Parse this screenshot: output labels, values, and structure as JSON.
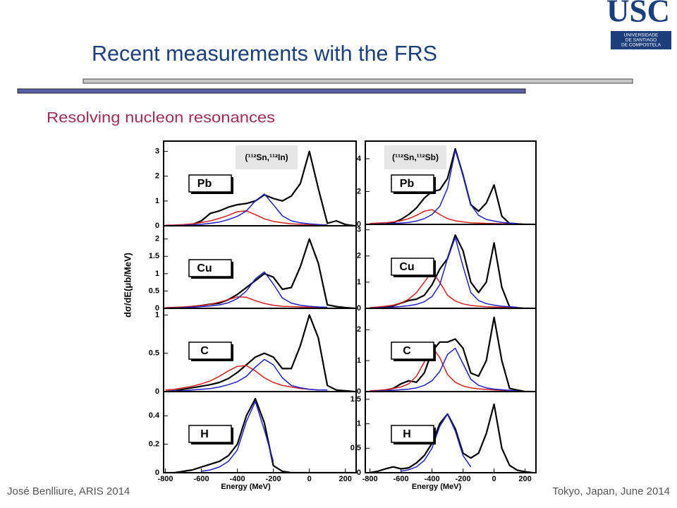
{
  "title": "Recent measurements with the FRS",
  "subtitle": "Resolving nucleon resonances",
  "logo": {
    "mark": "USC",
    "lines": [
      "UNIVERSIDADE",
      "DE SANTIAGO",
      "DE COMPOSTELA"
    ]
  },
  "footer_left": "José Benlliure, ARIS 2014",
  "footer_right": "Tokyo, Japan, June 2014",
  "ylabel": "dσ/dE(μb/MeV)",
  "chart_data": [
    {
      "type": "line",
      "label": "Pb",
      "reaction": "(¹¹²Sn,¹¹²In)",
      "x": [
        -800,
        -750,
        -700,
        -650,
        -600,
        -550,
        -500,
        -450,
        -400,
        -350,
        -300,
        -250,
        -200,
        -150,
        -100,
        -50,
        0,
        50,
        100,
        150,
        200,
        250
      ],
      "xlim": [
        -810,
        260
      ],
      "ylim": [
        0,
        3.3
      ],
      "yticks": [
        0,
        1,
        2,
        3
      ],
      "series": [
        {
          "color": "#000000",
          "values": [
            0,
            0,
            0.02,
            0.05,
            0.2,
            0.5,
            0.6,
            0.75,
            0.85,
            0.9,
            1.0,
            1.25,
            1.1,
            1.0,
            1.2,
            1.7,
            3.0,
            1.5,
            0.1,
            0.2,
            0.05,
            0
          ]
        },
        {
          "color": "#d02020",
          "values": [
            0.02,
            0.03,
            0.05,
            0.08,
            0.13,
            0.2,
            0.3,
            0.42,
            0.57,
            0.6,
            0.45,
            0.28,
            0.18,
            0.12,
            0.08,
            0.06,
            0.04,
            0.03,
            0.02,
            null,
            null,
            null
          ]
        },
        {
          "color": "#2020c0",
          "values": [
            0,
            0.01,
            0.02,
            0.04,
            0.06,
            0.1,
            0.15,
            0.25,
            0.38,
            0.6,
            1.0,
            1.28,
            0.85,
            0.4,
            0.2,
            0.12,
            0.08,
            0.05,
            0.03,
            null,
            null,
            null
          ]
        }
      ]
    },
    {
      "type": "line",
      "label": "Cu",
      "x": [
        -800,
        -750,
        -700,
        -650,
        -600,
        -550,
        -500,
        -450,
        -400,
        -350,
        -300,
        -250,
        -200,
        -150,
        -100,
        -50,
        0,
        50,
        100,
        150,
        200,
        250
      ],
      "xlim": [
        -810,
        260
      ],
      "ylim": [
        0,
        2.3
      ],
      "yticks": [
        0,
        0.5,
        1,
        1.5,
        2
      ],
      "series": [
        {
          "color": "#000000",
          "values": [
            0,
            0,
            0.02,
            0.05,
            0.08,
            0.12,
            0.15,
            0.25,
            0.4,
            0.6,
            0.8,
            1.0,
            0.9,
            0.55,
            0.6,
            1.2,
            2.0,
            1.3,
            0.1,
            0.05,
            0.02,
            0
          ]
        },
        {
          "color": "#d02020",
          "values": [
            0.02,
            0.03,
            0.04,
            0.06,
            0.08,
            0.12,
            0.18,
            0.25,
            0.33,
            0.32,
            0.22,
            0.14,
            0.09,
            0.06,
            0.05,
            0.04,
            0.03,
            0.02,
            0.02,
            null,
            null,
            null
          ]
        },
        {
          "color": "#2020c0",
          "values": [
            0.01,
            0.01,
            0.02,
            0.03,
            0.05,
            0.07,
            0.1,
            0.16,
            0.28,
            0.5,
            0.85,
            1.05,
            0.7,
            0.3,
            0.15,
            0.09,
            0.06,
            0.04,
            0.03,
            null,
            null,
            null
          ]
        }
      ]
    },
    {
      "type": "line",
      "label": "C",
      "x": [
        -800,
        -750,
        -700,
        -650,
        -600,
        -550,
        -500,
        -450,
        -400,
        -350,
        -300,
        -250,
        -200,
        -150,
        -100,
        -50,
        0,
        50,
        100,
        150,
        200,
        250
      ],
      "xlim": [
        -810,
        260
      ],
      "ylim": [
        0,
        1.05
      ],
      "yticks": [
        0,
        0.5,
        1
      ],
      "series": [
        {
          "color": "#000000",
          "values": [
            0,
            0.01,
            0.03,
            0.05,
            0.07,
            0.09,
            0.12,
            0.17,
            0.25,
            0.35,
            0.45,
            0.5,
            0.45,
            0.3,
            0.3,
            0.6,
            1.0,
            0.7,
            0.08,
            0.02,
            0.01,
            0
          ]
        },
        {
          "color": "#d02020",
          "values": [
            0.02,
            0.03,
            0.05,
            0.07,
            0.1,
            0.14,
            0.2,
            0.27,
            0.33,
            0.34,
            0.27,
            0.18,
            0.12,
            0.08,
            0.06,
            0.04,
            0.03,
            0.02,
            0.02,
            null,
            null,
            null
          ]
        },
        {
          "color": "#2020c0",
          "values": [
            0,
            0.01,
            0.01,
            0.02,
            0.03,
            0.04,
            0.06,
            0.09,
            0.13,
            0.2,
            0.32,
            0.42,
            0.35,
            0.18,
            0.08,
            0.05,
            0.03,
            0.02,
            0.02,
            null,
            null,
            null
          ]
        }
      ]
    },
    {
      "type": "line",
      "label": "H",
      "x": [
        -800,
        -750,
        -700,
        -650,
        -600,
        -550,
        -500,
        -450,
        -400,
        -350,
        -300,
        -250,
        -200,
        -150,
        -100,
        -50,
        0,
        50,
        100,
        150,
        200,
        250
      ],
      "xlim": [
        -810,
        260
      ],
      "ylim": [
        0,
        0.55
      ],
      "yticks": [
        0,
        0.2,
        0.4
      ],
      "xticks": [
        -800,
        -600,
        -400,
        -200,
        0,
        200
      ],
      "xlabel": "Energy (MeV)",
      "series": [
        {
          "color": "#000000",
          "values": [
            0,
            0,
            0.01,
            0.02,
            0.04,
            0.06,
            0.08,
            0.12,
            0.2,
            0.4,
            0.52,
            0.35,
            0.05,
            0.01,
            0,
            0,
            0,
            0,
            0,
            0,
            0,
            0
          ]
        },
        {
          "color": "#2020c0",
          "values": [
            null,
            null,
            null,
            null,
            0.01,
            0.02,
            0.04,
            0.08,
            0.16,
            0.36,
            0.5,
            0.3,
            0.08,
            null,
            null,
            null,
            null,
            null,
            null,
            null,
            null,
            null
          ]
        }
      ]
    },
    {
      "type": "line",
      "label": "Pb",
      "reaction": "(¹¹²Sn,¹¹²Sb)",
      "x": [
        -800,
        -750,
        -700,
        -650,
        -600,
        -550,
        -500,
        -450,
        -400,
        -350,
        -300,
        -250,
        -200,
        -150,
        -100,
        -50,
        0,
        50,
        100,
        150,
        200,
        250
      ],
      "xlim": [
        -830,
        270
      ],
      "ylim": [
        0,
        4.9
      ],
      "yticks": [
        0,
        2,
        4
      ],
      "series": [
        {
          "color": "#000000",
          "values": [
            0,
            0,
            0.05,
            0.1,
            0.3,
            0.6,
            1.0,
            1.6,
            2.0,
            2.1,
            2.8,
            4.6,
            3.0,
            1.2,
            0.8,
            1.3,
            2.4,
            0.5,
            0.05,
            0.02,
            0,
            0
          ]
        },
        {
          "color": "#d02020",
          "values": [
            0.05,
            0.08,
            0.1,
            0.15,
            0.22,
            0.35,
            0.55,
            0.8,
            0.9,
            0.6,
            0.35,
            0.22,
            0.15,
            0.1,
            0.08,
            0.06,
            0.05,
            0.04,
            0.03,
            0.02,
            null,
            null
          ]
        },
        {
          "color": "#2020c0",
          "values": [
            0.01,
            0.02,
            0.03,
            0.05,
            0.08,
            0.12,
            0.2,
            0.35,
            0.6,
            1.1,
            2.2,
            4.5,
            3.0,
            1.2,
            0.55,
            0.3,
            0.2,
            0.12,
            0.08,
            0.05,
            null,
            null
          ]
        }
      ]
    },
    {
      "type": "line",
      "label": "Cu",
      "x": [
        -800,
        -750,
        -700,
        -650,
        -600,
        -550,
        -500,
        -450,
        -400,
        -350,
        -300,
        -250,
        -200,
        -150,
        -100,
        -50,
        0,
        50,
        100,
        150,
        200,
        250
      ],
      "xlim": [
        -830,
        270
      ],
      "ylim": [
        0,
        3.1
      ],
      "yticks": [
        0,
        1,
        2,
        3
      ],
      "series": [
        {
          "color": "#000000",
          "values": [
            0,
            0,
            0.05,
            0.1,
            0.2,
            0.3,
            0.35,
            0.5,
            0.9,
            1.5,
            1.9,
            2.8,
            2.2,
            1.0,
            0.6,
            1.0,
            2.5,
            0.8,
            0.05,
            0.02,
            0,
            0
          ]
        },
        {
          "color": "#d02020",
          "values": [
            0.03,
            0.05,
            0.08,
            0.12,
            0.2,
            0.35,
            0.6,
            1.0,
            1.4,
            1.0,
            0.5,
            0.28,
            0.17,
            0.11,
            0.08,
            0.06,
            0.05,
            0.04,
            0.03,
            0.02,
            null,
            null
          ]
        },
        {
          "color": "#2020c0",
          "values": [
            0.01,
            0.02,
            0.03,
            0.05,
            0.07,
            0.1,
            0.15,
            0.25,
            0.45,
            0.9,
            1.9,
            2.7,
            1.6,
            0.6,
            0.3,
            0.18,
            0.12,
            0.08,
            0.06,
            0.04,
            null,
            null
          ]
        }
      ]
    },
    {
      "type": "line",
      "label": "C",
      "x": [
        -800,
        -750,
        -700,
        -650,
        -600,
        -550,
        -500,
        -450,
        -400,
        -350,
        -300,
        -250,
        -200,
        -150,
        -100,
        -50,
        0,
        50,
        100,
        150,
        200,
        250
      ],
      "xlim": [
        -830,
        270
      ],
      "ylim": [
        0,
        2.6
      ],
      "yticks": [
        0,
        1,
        2
      ],
      "series": [
        {
          "color": "#000000",
          "values": [
            0,
            0,
            0.05,
            0.1,
            0.25,
            0.35,
            0.3,
            0.6,
            1.3,
            1.6,
            1.6,
            1.7,
            1.4,
            0.6,
            0.5,
            1.0,
            2.4,
            1.0,
            0.1,
            0.05,
            0,
            0
          ]
        },
        {
          "color": "#d02020",
          "values": [
            0.03,
            0.04,
            0.06,
            0.1,
            0.15,
            0.25,
            0.5,
            0.95,
            1.45,
            1.1,
            0.55,
            0.3,
            0.18,
            0.12,
            0.09,
            0.07,
            0.05,
            0.04,
            0.03,
            0.02,
            null,
            null
          ]
        },
        {
          "color": "#2020c0",
          "values": [
            0.01,
            0.02,
            0.03,
            0.04,
            0.06,
            0.08,
            0.12,
            0.2,
            0.35,
            0.65,
            1.2,
            1.4,
            0.9,
            0.4,
            0.2,
            0.12,
            0.08,
            0.06,
            0.04,
            0.03,
            null,
            null
          ]
        }
      ]
    },
    {
      "type": "line",
      "label": "H",
      "x": [
        -800,
        -750,
        -700,
        -650,
        -600,
        -550,
        -500,
        -450,
        -400,
        -350,
        -300,
        -250,
        -200,
        -150,
        -100,
        -50,
        0,
        50,
        100,
        150,
        200,
        250
      ],
      "xlim": [
        -830,
        270
      ],
      "ylim": [
        0,
        1.6
      ],
      "yticks": [
        0,
        0.5,
        1,
        1.5
      ],
      "xticks": [
        -800,
        -600,
        -400,
        -200,
        0,
        200
      ],
      "xlabel": "Energy (MeV)",
      "series": [
        {
          "color": "#000000",
          "values": [
            0,
            0.03,
            0.08,
            0.12,
            0.08,
            0.1,
            0.2,
            0.35,
            0.6,
            1.0,
            1.2,
            0.9,
            0.4,
            0.3,
            0.4,
            0.8,
            1.4,
            0.5,
            0.15,
            0.05,
            0.02,
            0
          ]
        },
        {
          "color": "#2020c0",
          "values": [
            null,
            null,
            null,
            null,
            0.03,
            0.06,
            0.12,
            0.25,
            0.5,
            0.95,
            1.2,
            0.85,
            0.35,
            0.12,
            null,
            null,
            null,
            null,
            null,
            null,
            null,
            null
          ]
        }
      ]
    }
  ]
}
